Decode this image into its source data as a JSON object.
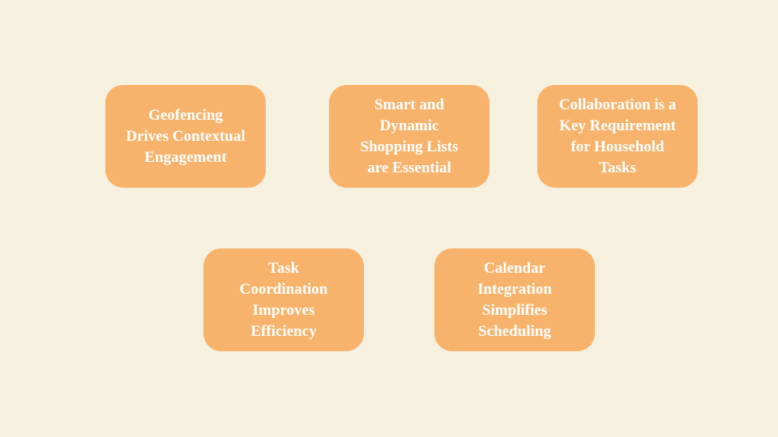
{
  "colors": {
    "background": "#f6f0de",
    "card_fill": "#f7b36b",
    "card_text": "#ffffff"
  },
  "cards": [
    {
      "text": "Geofencing\nDrives Contextual\nEngagement"
    },
    {
      "text": "Smart and\nDynamic\nShopping Lists\nare Essential"
    },
    {
      "text": "Collaboration is a\nKey Requirement\nfor Household\nTasks"
    },
    {
      "text": "Task\nCoordination\nImproves\nEfficiency"
    },
    {
      "text": "Calendar\nIntegration\nSimplifies\nScheduling"
    }
  ]
}
